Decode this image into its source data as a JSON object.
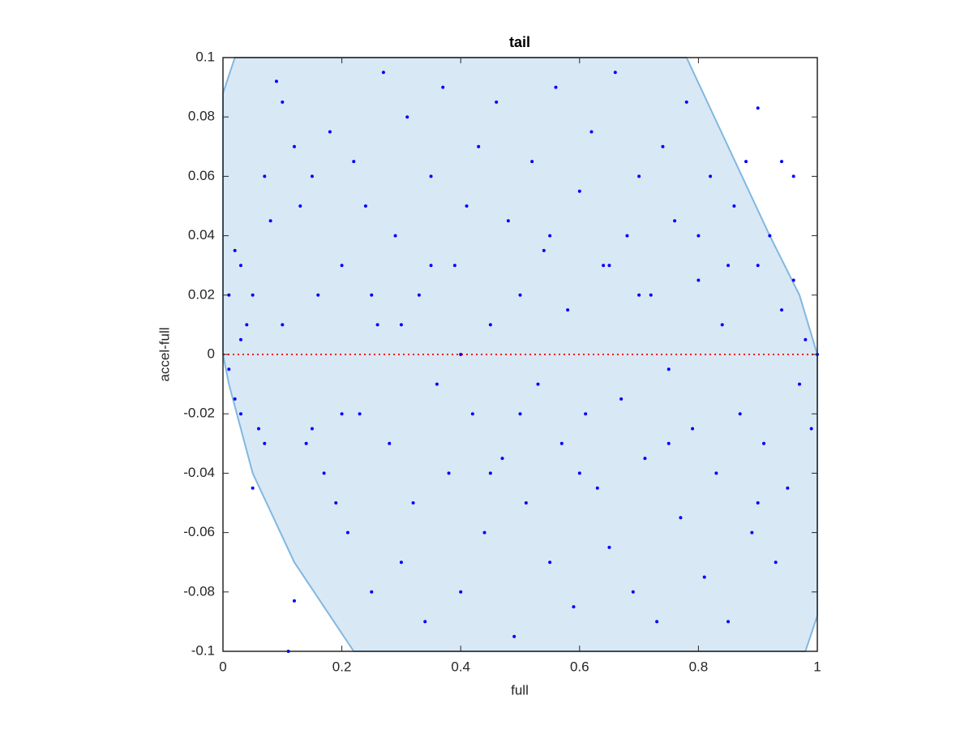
{
  "chart_data": {
    "type": "scatter",
    "title": "tail",
    "xlabel": "full",
    "ylabel": "accel-full",
    "xlim": [
      0,
      1
    ],
    "ylim": [
      -0.1,
      0.1
    ],
    "xticks": [
      0,
      0.2,
      0.4,
      0.6,
      0.8,
      1
    ],
    "yticks": [
      -0.1,
      -0.08,
      -0.06,
      -0.04,
      -0.02,
      0,
      0.02,
      0.04,
      0.06,
      0.08,
      0.1
    ],
    "grid": false,
    "region": {
      "color": "#d9e8f5",
      "edge_color": "#80b8e0",
      "x": [
        0,
        0.02,
        0.78,
        0.85,
        0.92,
        0.97,
        1,
        1,
        0.98,
        0.22,
        0.12,
        0.05,
        0.01,
        0
      ],
      "y": [
        0.088,
        0.1,
        0.1,
        0.07,
        0.04,
        0.02,
        0,
        -0.088,
        -0.1,
        -0.1,
        -0.07,
        -0.04,
        -0.01,
        0
      ]
    },
    "reference_line": {
      "y": 0,
      "color": "#ff0000",
      "style": "dotted"
    },
    "series": [
      {
        "color": "#0000ff",
        "x": [
          0.01,
          0.02,
          0.03,
          0.01,
          0.02,
          0.03,
          0.04,
          0.05,
          0.06,
          0.07,
          0.08,
          0.1,
          0.12,
          0.13,
          0.14,
          0.15,
          0.16,
          0.17,
          0.18,
          0.19,
          0.2,
          0.21,
          0.22,
          0.23,
          0.24,
          0.25,
          0.26,
          0.27,
          0.28,
          0.29,
          0.3,
          0.31,
          0.32,
          0.33,
          0.34,
          0.35,
          0.36,
          0.37,
          0.38,
          0.39,
          0.4,
          0.41,
          0.42,
          0.43,
          0.44,
          0.45,
          0.46,
          0.47,
          0.48,
          0.49,
          0.5,
          0.51,
          0.52,
          0.53,
          0.54,
          0.55,
          0.56,
          0.57,
          0.58,
          0.59,
          0.6,
          0.61,
          0.62,
          0.63,
          0.64,
          0.65,
          0.66,
          0.67,
          0.68,
          0.69,
          0.7,
          0.71,
          0.72,
          0.73,
          0.74,
          0.75,
          0.76,
          0.77,
          0.78,
          0.79,
          0.8,
          0.81,
          0.82,
          0.83,
          0.84,
          0.85,
          0.86,
          0.87,
          0.88,
          0.89,
          0.9,
          0.91,
          0.92,
          0.93,
          0.94,
          0.95,
          0.96,
          0.97,
          0.98,
          0.99,
          1,
          0.94,
          0.96,
          0.9,
          0.11,
          0.12,
          0.1,
          0.09,
          0.15,
          0.35,
          0.45,
          0.55,
          0.65,
          0.75,
          0.85,
          0.25,
          0.2,
          0.3,
          0.4,
          0.5,
          0.6,
          0.7,
          0.8,
          0.9,
          0.07,
          0.05,
          0.03
        ],
        "values": [
          0.02,
          0.035,
          0.03,
          -0.005,
          -0.015,
          0.005,
          0.01,
          0.02,
          -0.025,
          -0.03,
          0.045,
          0.01,
          0.07,
          0.05,
          -0.03,
          0.06,
          0.02,
          -0.04,
          0.075,
          -0.05,
          0.03,
          -0.06,
          0.065,
          -0.02,
          0.05,
          -0.08,
          0.01,
          0.095,
          -0.03,
          0.04,
          -0.07,
          0.08,
          -0.05,
          0.02,
          -0.09,
          0.06,
          -0.01,
          0.09,
          -0.04,
          0.03,
          -0.08,
          0.05,
          -0.02,
          0.07,
          -0.06,
          0.01,
          0.085,
          -0.035,
          0.045,
          -0.095,
          0.02,
          -0.05,
          0.065,
          -0.01,
          0.035,
          -0.07,
          0.09,
          -0.03,
          0.015,
          -0.085,
          0.055,
          -0.02,
          0.075,
          -0.045,
          0.03,
          -0.065,
          0.095,
          -0.015,
          0.04,
          -0.08,
          0.06,
          -0.035,
          0.02,
          -0.09,
          0.07,
          -0.005,
          0.045,
          -0.055,
          0.085,
          -0.025,
          0.025,
          -0.075,
          0.06,
          -0.04,
          0.01,
          -0.09,
          0.05,
          -0.02,
          0.065,
          -0.06,
          0.03,
          -0.03,
          0.04,
          -0.07,
          0.015,
          -0.045,
          0.025,
          -0.01,
          0.005,
          -0.025,
          0,
          0.065,
          0.06,
          0.083,
          -0.1,
          -0.083,
          0.085,
          0.092,
          -0.025,
          0.03,
          -0.04,
          0.04,
          0.03,
          -0.03,
          0.03,
          0.02,
          -0.02,
          0.01,
          0,
          -0.02,
          -0.04,
          0.02,
          0.04,
          -0.05,
          0.06,
          -0.045,
          -0.02
        ]
      }
    ]
  }
}
